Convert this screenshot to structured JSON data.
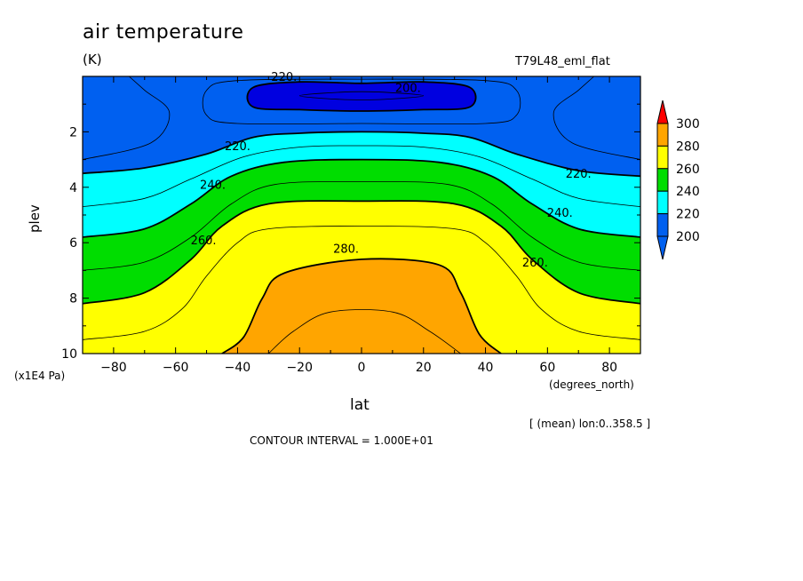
{
  "header": {
    "title": "air temperature",
    "units": "(K)",
    "subtitle": "T79L48_eml_flat"
  },
  "footer": {
    "mean_label": "[ (mean) lon:0..358.5 ]",
    "contour_interval": "CONTOUR INTERVAL = 1.000E+01"
  },
  "colors": {
    "c190": "#0000e0",
    "c200": "#0060f0",
    "c220": "#00ffff",
    "c240": "#00dd00",
    "c260": "#ffff00",
    "c280": "#ffa500",
    "c300": "#ff0000"
  },
  "chart_data": {
    "type": "contour",
    "variable": "air temperature",
    "units": "(K)",
    "xlabel": "lat",
    "ylabel": "plev",
    "x_units": "(degrees_north)",
    "y_units": "(x1E4 Pa)",
    "xlim": [
      -90,
      90
    ],
    "ylim": [
      10,
      0
    ],
    "x_ticks": [
      "-80",
      "-60",
      "-40",
      "-20",
      "0",
      "20",
      "40",
      "60",
      "80"
    ],
    "y_ticks": [
      "2",
      "4",
      "6",
      "8",
      "10"
    ],
    "contour_interval": 10,
    "colorbar": {
      "levels": [
        "200",
        "220",
        "240",
        "260",
        "280",
        "300"
      ],
      "colors": [
        "#0060f0",
        "#00ffff",
        "#00dd00",
        "#ffff00",
        "#ffa500",
        "#ff0000"
      ],
      "extend": "both"
    },
    "contour_labels": [
      {
        "text": "200.",
        "lat": 15,
        "plev": 0.4
      },
      {
        "text": "220.",
        "lat": -25,
        "plev": 0.0
      },
      {
        "text": "220.",
        "lat": -40,
        "plev": 2.5
      },
      {
        "text": "220.",
        "lat": 70,
        "plev": 3.5
      },
      {
        "text": "240.",
        "lat": -48,
        "plev": 3.9
      },
      {
        "text": "240.",
        "lat": 64,
        "plev": 4.9
      },
      {
        "text": "260.",
        "lat": -51,
        "plev": 5.9
      },
      {
        "text": "260.",
        "lat": 56,
        "plev": 6.7
      },
      {
        "text": "280.",
        "lat": -5,
        "plev": 6.2
      }
    ],
    "isolines": [
      {
        "level": 200,
        "closed": true,
        "points": [
          [
            -35,
            0.4
          ],
          [
            -20,
            0.2
          ],
          [
            0,
            0.25
          ],
          [
            20,
            0.2
          ],
          [
            35,
            0.4
          ],
          [
            35,
            1.1
          ],
          [
            20,
            1.2
          ],
          [
            0,
            1.25
          ],
          [
            -20,
            1.2
          ],
          [
            -35,
            1.1
          ]
        ]
      },
      {
        "level": 190,
        "closed": true,
        "points": [
          [
            -20,
            0.7
          ],
          [
            0,
            0.55
          ],
          [
            20,
            0.7
          ],
          [
            0,
            0.85
          ]
        ]
      },
      {
        "level": 210,
        "closed": false,
        "points": [
          [
            -75,
            0
          ],
          [
            -70,
            0.5
          ],
          [
            -62,
            1.3
          ],
          [
            -68,
            2.4
          ],
          [
            -90,
            3.0
          ]
        ]
      },
      {
        "level": 210,
        "closed": false,
        "points": [
          [
            75,
            0
          ],
          [
            70,
            0.5
          ],
          [
            62,
            1.3
          ],
          [
            68,
            2.4
          ],
          [
            90,
            3.0
          ]
        ]
      },
      {
        "level": 210,
        "closed": true,
        "points": [
          [
            -50,
            0.5
          ],
          [
            -40,
            0.15
          ],
          [
            0,
            0.1
          ],
          [
            40,
            0.15
          ],
          [
            50,
            0.5
          ],
          [
            50,
            1.4
          ],
          [
            40,
            1.7
          ],
          [
            0,
            1.7
          ],
          [
            -40,
            1.7
          ],
          [
            -50,
            1.4
          ]
        ]
      },
      {
        "level": 220,
        "closed": false,
        "points": [
          [
            -90,
            3.5
          ],
          [
            -70,
            3.3
          ],
          [
            -50,
            2.8
          ],
          [
            -35,
            2.2
          ],
          [
            -20,
            2.05
          ],
          [
            0,
            2.0
          ],
          [
            20,
            2.05
          ],
          [
            35,
            2.2
          ],
          [
            50,
            2.8
          ],
          [
            70,
            3.4
          ],
          [
            90,
            3.6
          ]
        ]
      },
      {
        "level": 230,
        "closed": false,
        "points": [
          [
            -90,
            4.7
          ],
          [
            -70,
            4.4
          ],
          [
            -55,
            3.7
          ],
          [
            -38,
            2.9
          ],
          [
            -20,
            2.55
          ],
          [
            0,
            2.5
          ],
          [
            20,
            2.55
          ],
          [
            38,
            2.9
          ],
          [
            55,
            3.7
          ],
          [
            70,
            4.4
          ],
          [
            90,
            4.7
          ]
        ]
      },
      {
        "level": 240,
        "closed": false,
        "points": [
          [
            -90,
            5.8
          ],
          [
            -70,
            5.5
          ],
          [
            -55,
            4.6
          ],
          [
            -42,
            3.6
          ],
          [
            -25,
            3.1
          ],
          [
            0,
            3.0
          ],
          [
            25,
            3.1
          ],
          [
            42,
            3.6
          ],
          [
            55,
            4.6
          ],
          [
            70,
            5.5
          ],
          [
            90,
            5.8
          ]
        ]
      },
      {
        "level": 250,
        "closed": false,
        "points": [
          [
            -90,
            7.0
          ],
          [
            -70,
            6.7
          ],
          [
            -55,
            5.8
          ],
          [
            -42,
            4.6
          ],
          [
            -28,
            3.9
          ],
          [
            0,
            3.8
          ],
          [
            28,
            3.9
          ],
          [
            42,
            4.6
          ],
          [
            55,
            5.8
          ],
          [
            70,
            6.7
          ],
          [
            90,
            7.0
          ]
        ]
      },
      {
        "level": 260,
        "closed": false,
        "points": [
          [
            -90,
            8.2
          ],
          [
            -70,
            7.8
          ],
          [
            -55,
            6.6
          ],
          [
            -45,
            5.4
          ],
          [
            -30,
            4.6
          ],
          [
            0,
            4.5
          ],
          [
            30,
            4.6
          ],
          [
            45,
            5.4
          ],
          [
            55,
            6.6
          ],
          [
            70,
            7.8
          ],
          [
            90,
            8.2
          ]
        ]
      },
      {
        "level": 270,
        "closed": false,
        "points": [
          [
            -90,
            9.5
          ],
          [
            -70,
            9.2
          ],
          [
            -58,
            8.4
          ],
          [
            -50,
            7.2
          ],
          [
            -40,
            6.0
          ],
          [
            -30,
            5.5
          ],
          [
            0,
            5.4
          ],
          [
            30,
            5.5
          ],
          [
            40,
            6.0
          ],
          [
            50,
            7.2
          ],
          [
            58,
            8.4
          ],
          [
            70,
            9.2
          ],
          [
            90,
            9.5
          ]
        ]
      },
      {
        "level": 280,
        "closed": false,
        "points": [
          [
            -45,
            10
          ],
          [
            -38,
            9.4
          ],
          [
            -32,
            8.0
          ],
          [
            -25,
            7.1
          ],
          [
            0,
            6.6
          ],
          [
            25,
            6.8
          ],
          [
            32,
            7.8
          ],
          [
            38,
            9.3
          ],
          [
            45,
            10
          ]
        ]
      },
      {
        "level": 285,
        "closed": false,
        "points": [
          [
            -30,
            10
          ],
          [
            -22,
            9.2
          ],
          [
            -10,
            8.5
          ],
          [
            10,
            8.5
          ],
          [
            22,
            9.2
          ],
          [
            32,
            10
          ]
        ]
      }
    ]
  }
}
